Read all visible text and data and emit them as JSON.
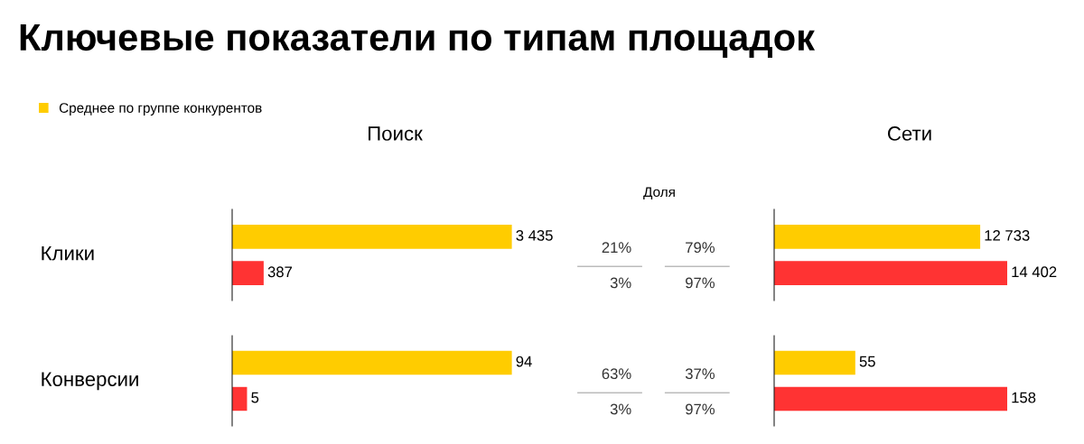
{
  "chart_data": [
    {
      "type": "other",
      "title": "Ключевые показатели по типам площадок"
    },
    {
      "type": "bar",
      "orientation": "horizontal",
      "title": "Поиск",
      "ylabel": "Клики",
      "categories": [
        null
      ],
      "tick_labels": false,
      "legend": "top left",
      "series": [
        {
          "name": "Среднее по группе конкурентов",
          "color": "#ffcc00",
          "values": [
            3435
          ],
          "value_labels": [
            "3 435"
          ]
        },
        {
          "color": "#ff3333",
          "values": [
            387
          ],
          "value_labels": [
            "387"
          ]
        }
      ]
    },
    {
      "type": "other",
      "title": "Доля",
      "annotations": [
        "21%",
        "79%",
        "3%",
        "97%",
        "63%",
        "37%",
        "3%",
        "97%"
      ]
    },
    {
      "type": "bar",
      "orientation": "horizontal",
      "title": "Сети",
      "categories": [
        null
      ],
      "tick_labels": false,
      "series": [
        {
          "name": "Среднее по группе конкурентов",
          "color": "#ffcc00",
          "values": [
            12733
          ],
          "value_labels": [
            "12 733"
          ]
        },
        {
          "color": "#ff3333",
          "values": [
            14402
          ],
          "value_labels": [
            "14 402"
          ]
        }
      ]
    },
    {
      "type": "bar",
      "orientation": "horizontal",
      "ylabel": "Конверсии",
      "categories": [
        null
      ],
      "tick_labels": false,
      "series": [
        {
          "name": "Среднее по группе конкурентов",
          "color": "#ffcc00",
          "values": [
            94
          ],
          "value_labels": [
            "94"
          ]
        },
        {
          "color": "#ff3333",
          "values": [
            5
          ],
          "value_labels": [
            "5"
          ]
        }
      ]
    },
    {
      "type": "bar",
      "orientation": "horizontal",
      "categories": [
        null
      ],
      "tick_labels": false,
      "series": [
        {
          "name": "Среднее по группе конкурентов",
          "color": "#ffcc00",
          "values": [
            55
          ],
          "value_labels": [
            "55"
          ]
        },
        {
          "color": "#ff3333",
          "values": [
            158
          ],
          "value_labels": [
            "158"
          ]
        }
      ]
    }
  ]
}
